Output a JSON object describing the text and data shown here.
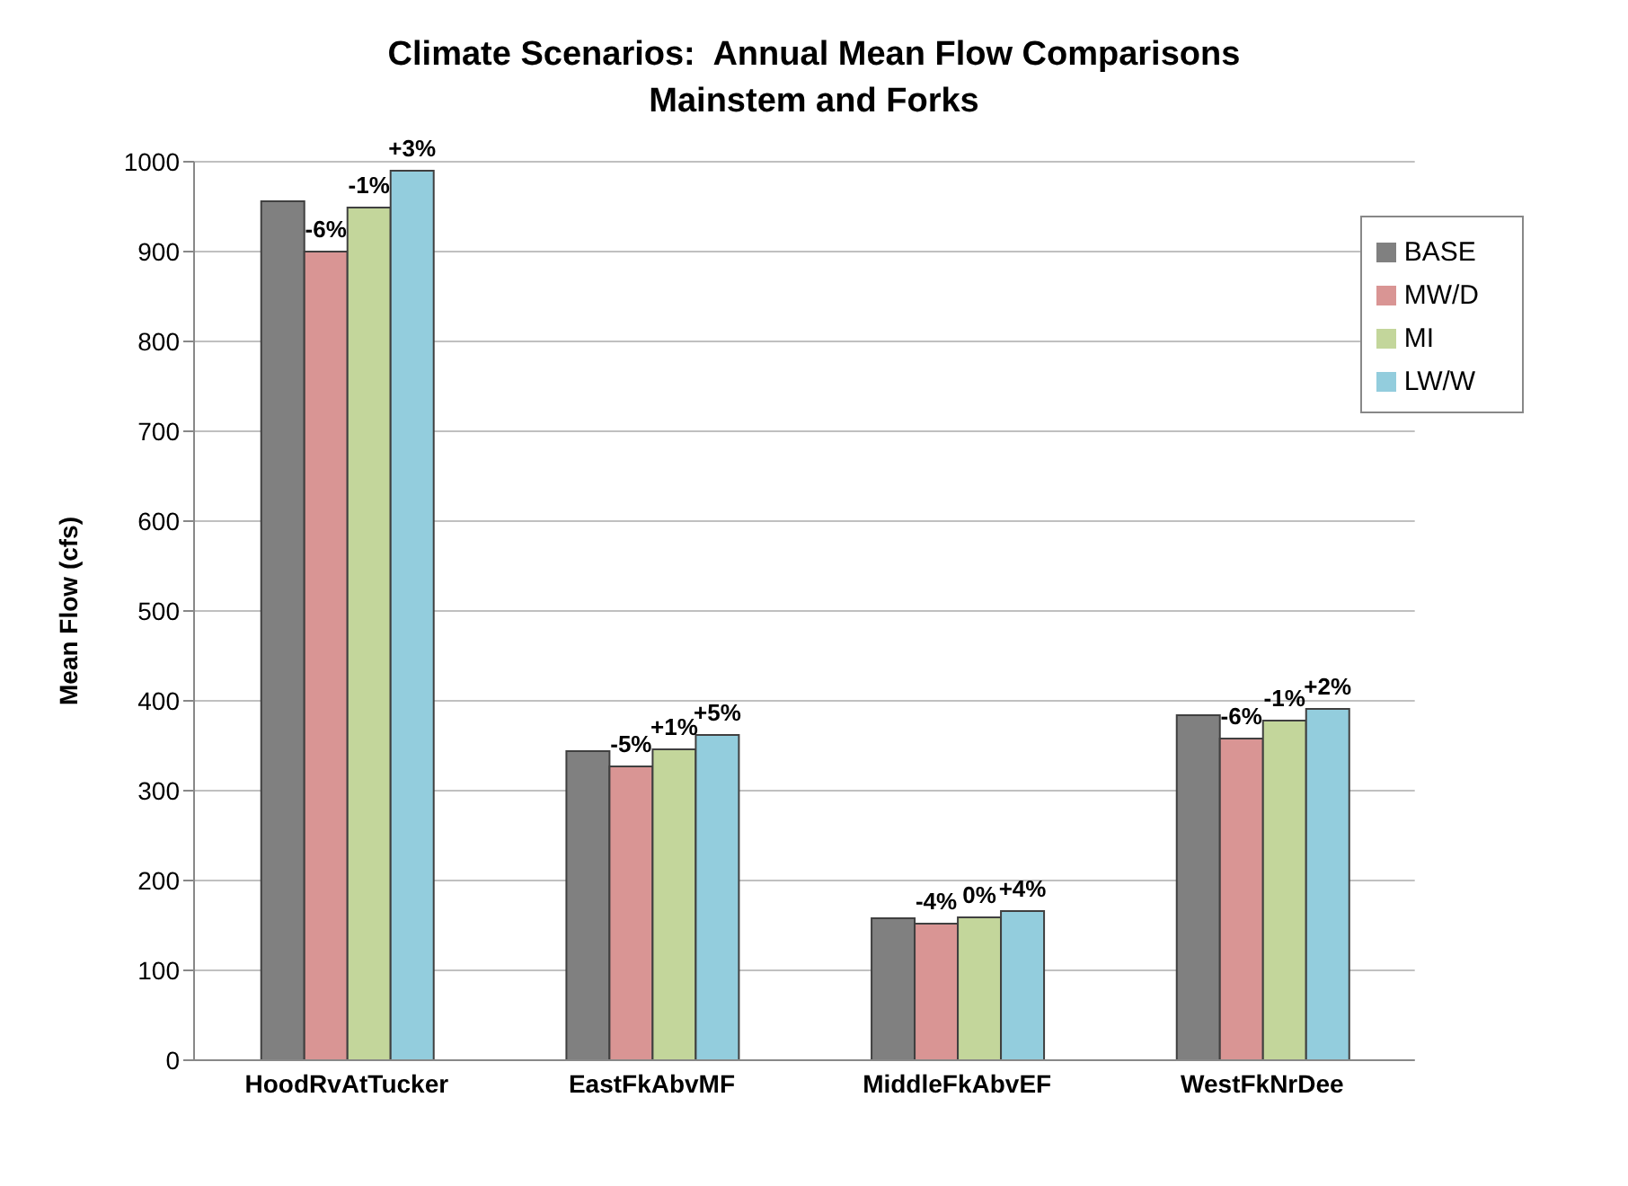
{
  "chart_data": {
    "type": "bar",
    "title": "Climate Scenarios:  Annual Mean Flow Comparisons",
    "subtitle": "Mainstem and Forks",
    "ylabel": "Mean Flow (cfs)",
    "categories": [
      "HoodRvAtTucker",
      "EastFkAbvMF",
      "MiddleFkAbvEF",
      "WestFkNrDee"
    ],
    "series": [
      {
        "name": "BASE",
        "color": "#808080",
        "values": [
          956,
          344,
          158,
          384
        ]
      },
      {
        "name": "MW/D",
        "color": "#d99594",
        "values": [
          900,
          327,
          152,
          358
        ]
      },
      {
        "name": "MI",
        "color": "#c3d69b",
        "values": [
          949,
          346,
          159,
          378
        ]
      },
      {
        "name": "LW/W",
        "color": "#93cddd",
        "values": [
          990,
          362,
          166,
          391
        ]
      }
    ],
    "annotations": [
      "-6%",
      "-1%",
      "+3%",
      "-5%",
      "+1%",
      "+5%",
      "-4%",
      "0%",
      "+4%",
      "-6%",
      "-1%",
      "+2%"
    ],
    "ylim": [
      0,
      1000
    ],
    "yticks": [
      0,
      100,
      200,
      300,
      400,
      500,
      600,
      700,
      800,
      900,
      1000
    ],
    "grid": "y",
    "legend": "top right"
  }
}
